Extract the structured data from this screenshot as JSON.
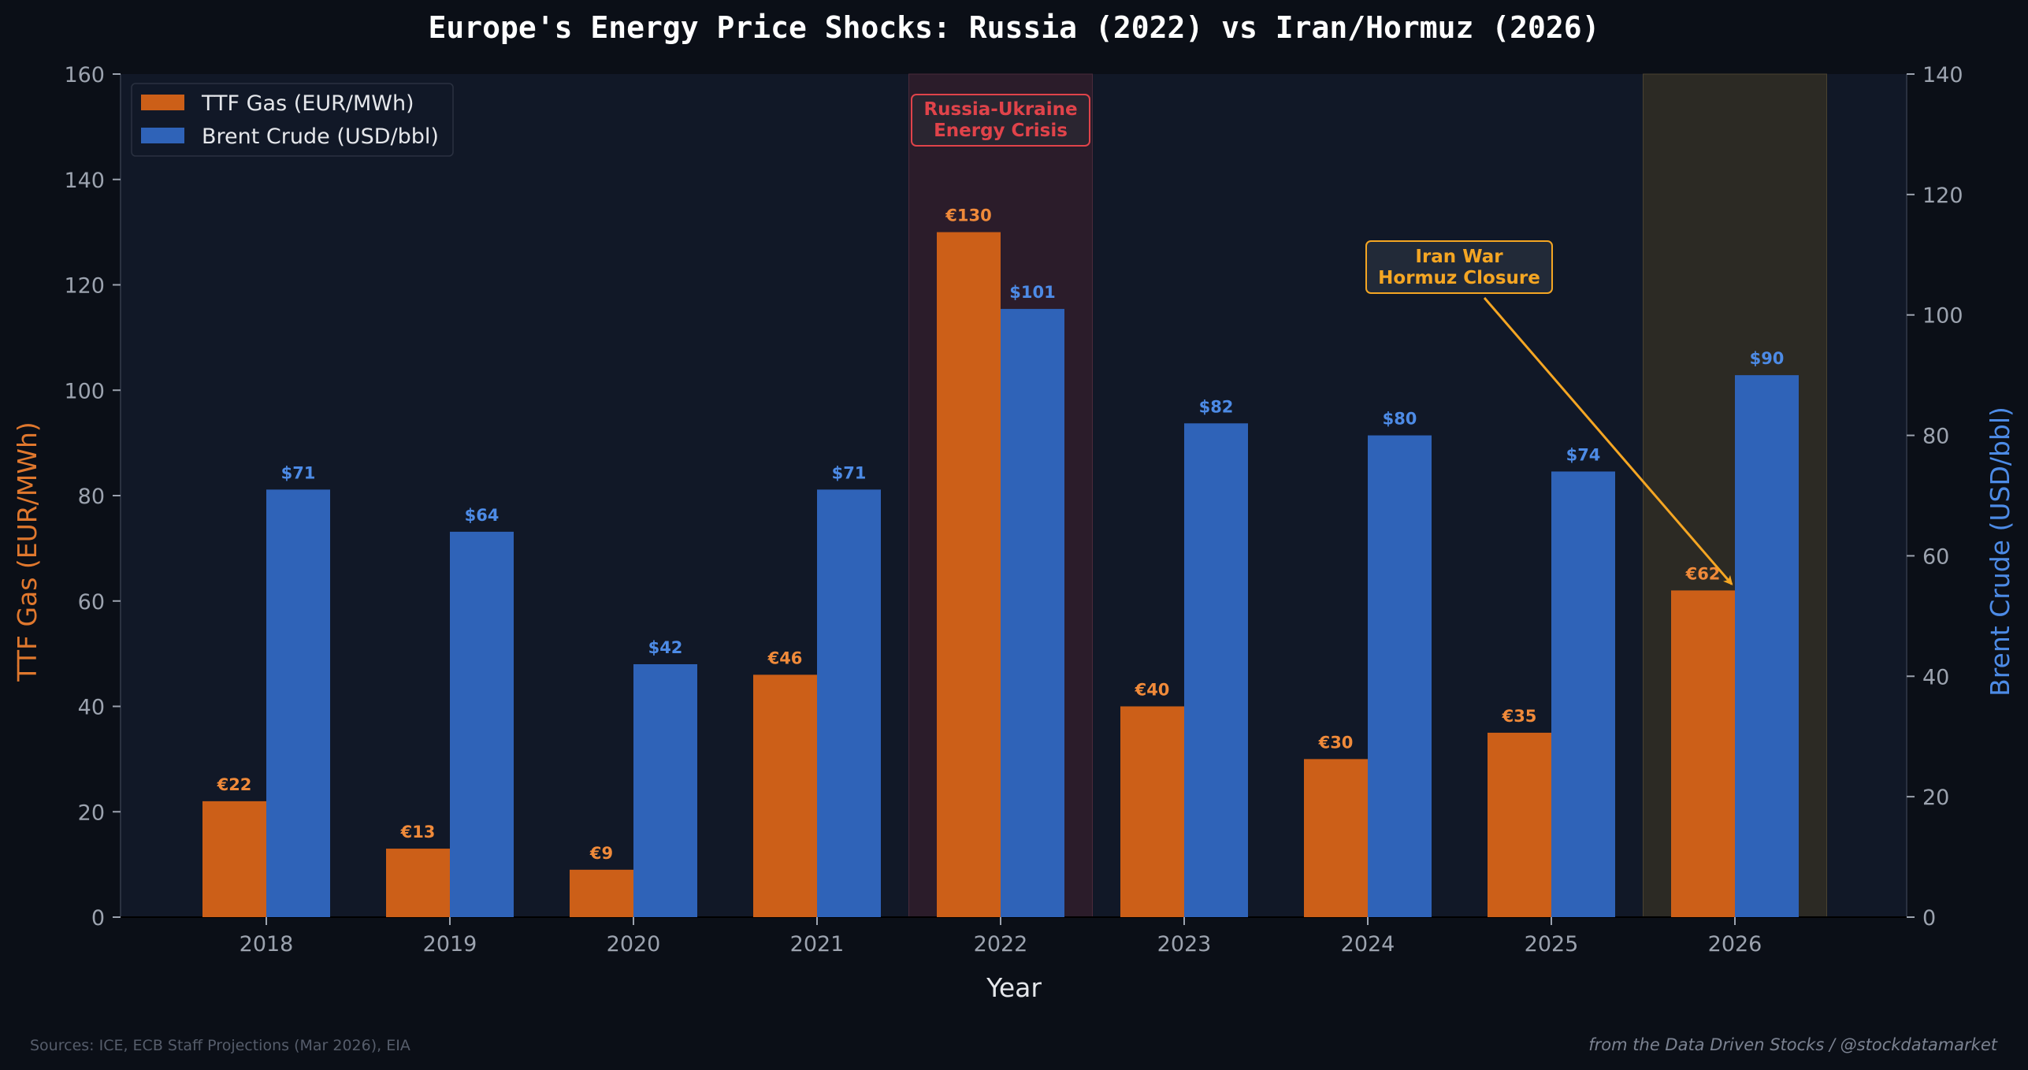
{
  "colors": {
    "background": "#0b0f17",
    "plot_bg": "#111827",
    "gas": "#cc5f18",
    "gas_text": "#f08a3a",
    "brent": "#2f63b8",
    "brent_text": "#4d8be6",
    "highlight_2022": "#2b1c2a",
    "highlight_2026": "#2c2a24",
    "crisis_text": "#e0434a",
    "iran_text": "#f5a623",
    "axis_text": "#9ca3af",
    "title_text": "#ffffff"
  },
  "footer": {
    "sources": "Sources: ICE, ECB Staff Projections (Mar 2026), EIA",
    "credit": "from the Data Driven Stocks / @stockdatamarket"
  },
  "chart_data": {
    "type": "bar",
    "title": "Europe's Energy Price Shocks: Russia (2022) vs Iran/Hormuz (2026)",
    "xlabel": "Year",
    "ylabel_left": "TTF Gas (EUR/MWh)",
    "ylabel_right": "Brent Crude (USD/bbl)",
    "categories": [
      "2018",
      "2019",
      "2020",
      "2021",
      "2022",
      "2023",
      "2024",
      "2025",
      "2026"
    ],
    "ylim_left": [
      0,
      160
    ],
    "ylim_right": [
      0,
      140
    ],
    "yticks_left": [
      0,
      20,
      40,
      60,
      80,
      100,
      120,
      140,
      160
    ],
    "yticks_right": [
      0,
      20,
      40,
      60,
      80,
      100,
      120,
      140
    ],
    "legend_position": "top-left",
    "series": [
      {
        "name": "TTF Gas (EUR/MWh)",
        "axis": "left",
        "values": [
          22,
          13,
          9,
          46,
          130,
          40,
          30,
          35,
          62
        ],
        "labels": [
          "€22",
          "€13",
          "€9",
          "€46",
          "€130",
          "€40",
          "€30",
          "€35",
          "€62"
        ]
      },
      {
        "name": "Brent Crude (USD/bbl)",
        "axis": "right",
        "values": [
          71,
          64,
          42,
          71,
          101,
          82,
          80,
          74,
          90
        ],
        "labels": [
          "$71",
          "$64",
          "$42",
          "$71",
          "$101",
          "$82",
          "$80",
          "$74",
          "$90"
        ]
      }
    ],
    "highlights": [
      {
        "category": "2022",
        "lines": [
          "Russia-Ukraine",
          "Energy Crisis"
        ]
      },
      {
        "category": "2026",
        "lines": [
          "Iran War",
          "Hormuz Closure"
        ]
      }
    ]
  }
}
